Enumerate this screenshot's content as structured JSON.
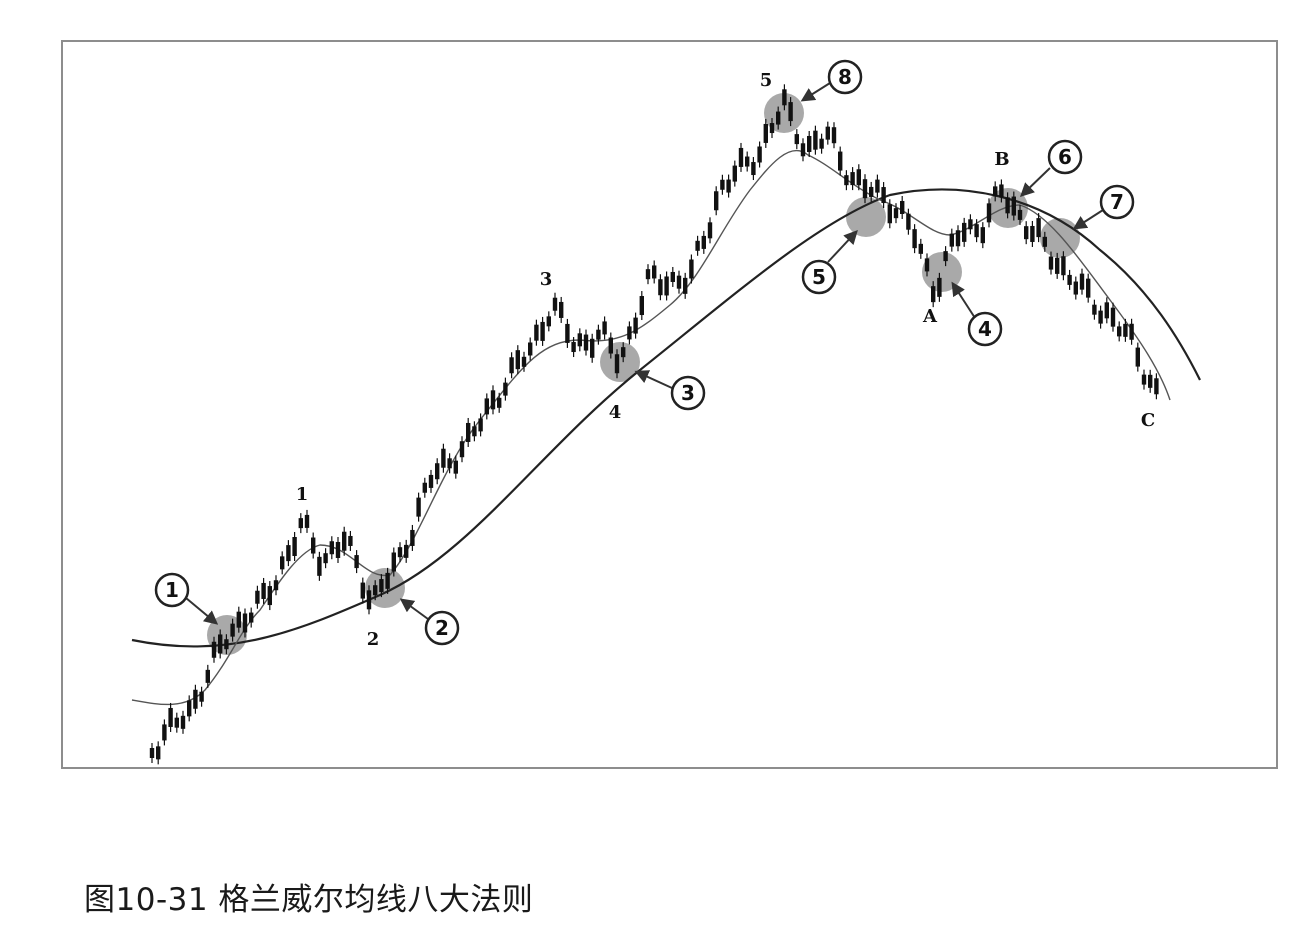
{
  "caption": "图10-31 格兰威尔均线八大法则",
  "colors": {
    "frame": "#8d8d8d",
    "candles": "#111111",
    "moving_average_long": "#222222",
    "moving_average_short": "#555555",
    "highlight": "#9a9a9a"
  },
  "wave_labels": {
    "w1": "1",
    "w2": "2",
    "w3": "3",
    "w4": "4",
    "w5": "5",
    "wA": "A",
    "wB": "B",
    "wC": "C"
  },
  "rule_markers": {
    "r1": "1",
    "r2": "2",
    "r3": "3",
    "r4": "4",
    "r5": "5",
    "r6": "6",
    "r7": "7",
    "r8": "8"
  }
}
